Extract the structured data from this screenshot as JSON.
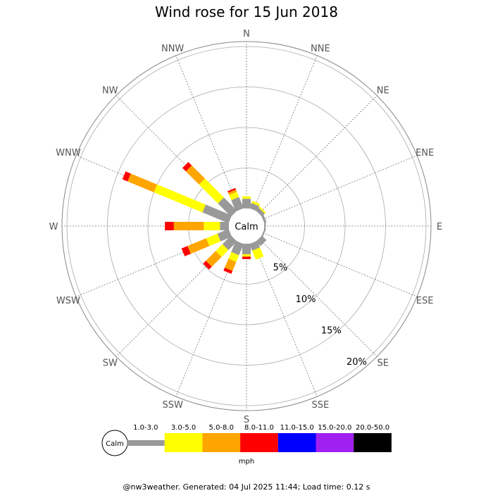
{
  "chart_data": {
    "type": "wind-rose",
    "title": "Wind rose for 15 Jun 2018",
    "calm_label": "Calm",
    "directions": [
      "N",
      "NNE",
      "NE",
      "ENE",
      "E",
      "ESE",
      "SE",
      "SSE",
      "S",
      "SSW",
      "SW",
      "WSW",
      "W",
      "WNW",
      "NW",
      "NNW"
    ],
    "ring_values": [
      5,
      10,
      15,
      20
    ],
    "ring_labels": [
      "5%",
      "10%",
      "15%",
      "20%"
    ],
    "unit": "mph",
    "speed_bins": [
      {
        "label": "1.0-3.0",
        "color": "#999999"
      },
      {
        "label": "3.0-5.0",
        "color": "#ffff00"
      },
      {
        "label": "5.0-8.0",
        "color": "#ffa500"
      },
      {
        "label": "8.0-11.0",
        "color": "#ff0000"
      },
      {
        "label": "11.0-15.0",
        "color": "#0000ff"
      },
      {
        "label": "15.0-20.0",
        "color": "#a020f0"
      },
      {
        "label": "20.0-50.0",
        "color": "#000000"
      }
    ],
    "series": [
      {
        "direction": "N",
        "values": [
          1.2,
          0.3,
          0,
          0,
          0,
          0,
          0
        ]
      },
      {
        "direction": "NNE",
        "values": [
          0.7,
          0.3,
          0,
          0,
          0,
          0,
          0
        ]
      },
      {
        "direction": "NE",
        "values": [
          0.5,
          0.2,
          0,
          0,
          0,
          0,
          0
        ]
      },
      {
        "direction": "ENE",
        "values": [
          0.3,
          0,
          0,
          0,
          0,
          0,
          0
        ]
      },
      {
        "direction": "E",
        "values": [
          0.2,
          0,
          0,
          0,
          0,
          0,
          0
        ]
      },
      {
        "direction": "ESE",
        "values": [
          0.2,
          0,
          0,
          0,
          0,
          0,
          0
        ]
      },
      {
        "direction": "SE",
        "values": [
          0.8,
          0,
          0,
          0,
          0,
          0,
          0
        ]
      },
      {
        "direction": "SSE",
        "values": [
          0.9,
          1.2,
          0,
          0,
          0,
          0,
          0
        ]
      },
      {
        "direction": "S",
        "values": [
          1.3,
          0.3,
          0,
          0.3,
          0,
          0,
          0
        ]
      },
      {
        "direction": "SSW",
        "values": [
          1.5,
          0.9,
          1.2,
          0.4,
          0,
          0,
          0
        ]
      },
      {
        "direction": "SW",
        "values": [
          1.5,
          1.2,
          1.7,
          0.5,
          0,
          0,
          0
        ]
      },
      {
        "direction": "WSW",
        "values": [
          1.5,
          1.5,
          2.5,
          0.8,
          0,
          0,
          0
        ]
      },
      {
        "direction": "W",
        "values": [
          1.1,
          2.0,
          3.7,
          1.1,
          0,
          0,
          0
        ]
      },
      {
        "direction": "WNW",
        "values": [
          3.5,
          6.5,
          3.5,
          0.7,
          0,
          0,
          0
        ]
      },
      {
        "direction": "NW",
        "values": [
          2.3,
          3.3,
          2.3,
          0.6,
          0,
          0,
          0
        ]
      },
      {
        "direction": "NNW",
        "values": [
          1.5,
          0.7,
          0.3,
          0.2,
          0,
          0,
          0
        ]
      }
    ]
  },
  "footer": "@nw3weather. Generated: 04 Jul 2025 11:44; Load time: 0.12 s"
}
